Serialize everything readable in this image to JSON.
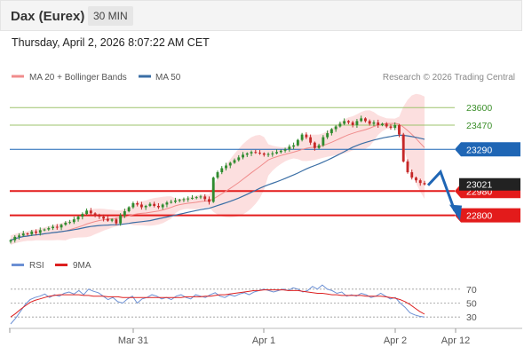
{
  "header": {
    "title": "Dax (Eurex)",
    "timeframe": "30 MIN"
  },
  "datetime": "Thursday, April 2, 2026 8:07:22 AM CET",
  "legend": [
    {
      "label": "MA 20 + Bollinger Bands",
      "color": "#f08c8c"
    },
    {
      "label": "MA 50",
      "color": "#3a6ea5"
    }
  ],
  "credit": "Research © 2026 Trading Central",
  "colors": {
    "up": "#2e8b2e",
    "down": "#c62828",
    "bb_fill": "#fbd9d9",
    "ma20": "#f08c8c",
    "ma50": "#3a6ea5",
    "resistance": "#9dc36b",
    "support": "#e31b1b",
    "pivot": "#1f66b5",
    "arrow": "#1f66b5",
    "rsi": "#6c90d4",
    "rsi_ma": "#dd2020"
  },
  "chart_data": [
    {
      "type": "candlestick",
      "title": "Dax (Eurex) 30 MIN",
      "ylim": [
        22580,
        23740
      ],
      "x_ticks": [
        "Mar 31",
        "Apr 1",
        "Apr 2",
        "Apr 12"
      ],
      "price_close": [
        22615,
        22640,
        22650,
        22665,
        22660,
        22680,
        22670,
        22690,
        22695,
        22705,
        22715,
        22710,
        22730,
        22745,
        22750,
        22770,
        22790,
        22810,
        22835,
        22815,
        22800,
        22790,
        22775,
        22760,
        22770,
        22740,
        22800,
        22830,
        22860,
        22890,
        22880,
        22860,
        22870,
        22885,
        22870,
        22860,
        22880,
        22895,
        22900,
        22910,
        22915,
        22920,
        22925,
        22930,
        22935,
        22940,
        22920,
        22900,
        23080,
        23120,
        23150,
        23170,
        23190,
        23210,
        23230,
        23250,
        23260,
        23270,
        23265,
        23260,
        23250,
        23255,
        23260,
        23270,
        23280,
        23290,
        23310,
        23320,
        23360,
        23400,
        23380,
        23340,
        23300,
        23320,
        23380,
        23410,
        23440,
        23460,
        23480,
        23500,
        23490,
        23470,
        23500,
        23520,
        23500,
        23480,
        23490,
        23470,
        23480,
        23460,
        23450,
        23470,
        23400,
        23200,
        23120,
        23080,
        23060,
        23040,
        23030
      ],
      "levels": [
        {
          "label": "23600",
          "kind": "resistance",
          "value": 23600
        },
        {
          "label": "23470",
          "kind": "resistance",
          "value": 23470
        },
        {
          "label": "23290",
          "kind": "pivot",
          "value": 23290
        },
        {
          "label": "22980",
          "kind": "support",
          "value": 22980
        },
        {
          "label": "22800",
          "kind": "support",
          "value": 22800
        }
      ],
      "last_price_badge": "23021",
      "forecast_arrow": "bearish: small rebound then decline toward 22800"
    },
    {
      "type": "line",
      "title": "RSI",
      "series": [
        {
          "name": "RSI",
          "values": [
            20,
            28,
            38,
            48,
            55,
            58,
            60,
            63,
            58,
            62,
            60,
            64,
            66,
            63,
            68,
            62,
            70,
            67,
            65,
            60,
            55,
            58,
            52,
            50,
            56,
            60,
            50,
            56,
            58,
            62,
            60,
            56,
            58,
            55,
            60,
            62,
            58,
            56,
            62,
            60,
            58,
            62,
            65,
            60,
            58,
            62,
            60,
            63,
            65,
            62,
            66,
            68,
            70,
            68,
            66,
            68,
            70,
            68,
            72,
            70,
            66,
            68,
            74,
            70,
            76,
            70,
            68,
            64,
            66,
            60,
            62,
            60,
            64,
            62,
            58,
            60,
            64,
            60,
            56,
            58,
            50,
            44,
            36,
            33,
            31,
            30
          ]
        },
        {
          "name": "9MA",
          "values": [
            30,
            35,
            41,
            46,
            51,
            54,
            56,
            58,
            60,
            61,
            62,
            62,
            62,
            62,
            62,
            61,
            61,
            60,
            60,
            60,
            59,
            59,
            59,
            58,
            58,
            58,
            58,
            58,
            58,
            58,
            58,
            58,
            58,
            58,
            58,
            58,
            59,
            59,
            59,
            59,
            60,
            60,
            61,
            62,
            62,
            63,
            64,
            65,
            66,
            67,
            68,
            68,
            69,
            69,
            69,
            69,
            69,
            68,
            68,
            68,
            67,
            66,
            65,
            64,
            64,
            63,
            62,
            62,
            61,
            61,
            61,
            61,
            61,
            60,
            60,
            60,
            60,
            59,
            58,
            57,
            55,
            52,
            48,
            43,
            38,
            34
          ]
        }
      ],
      "ylim": [
        20,
        80
      ],
      "y_ticks": [
        "70",
        "50",
        "30"
      ]
    }
  ]
}
